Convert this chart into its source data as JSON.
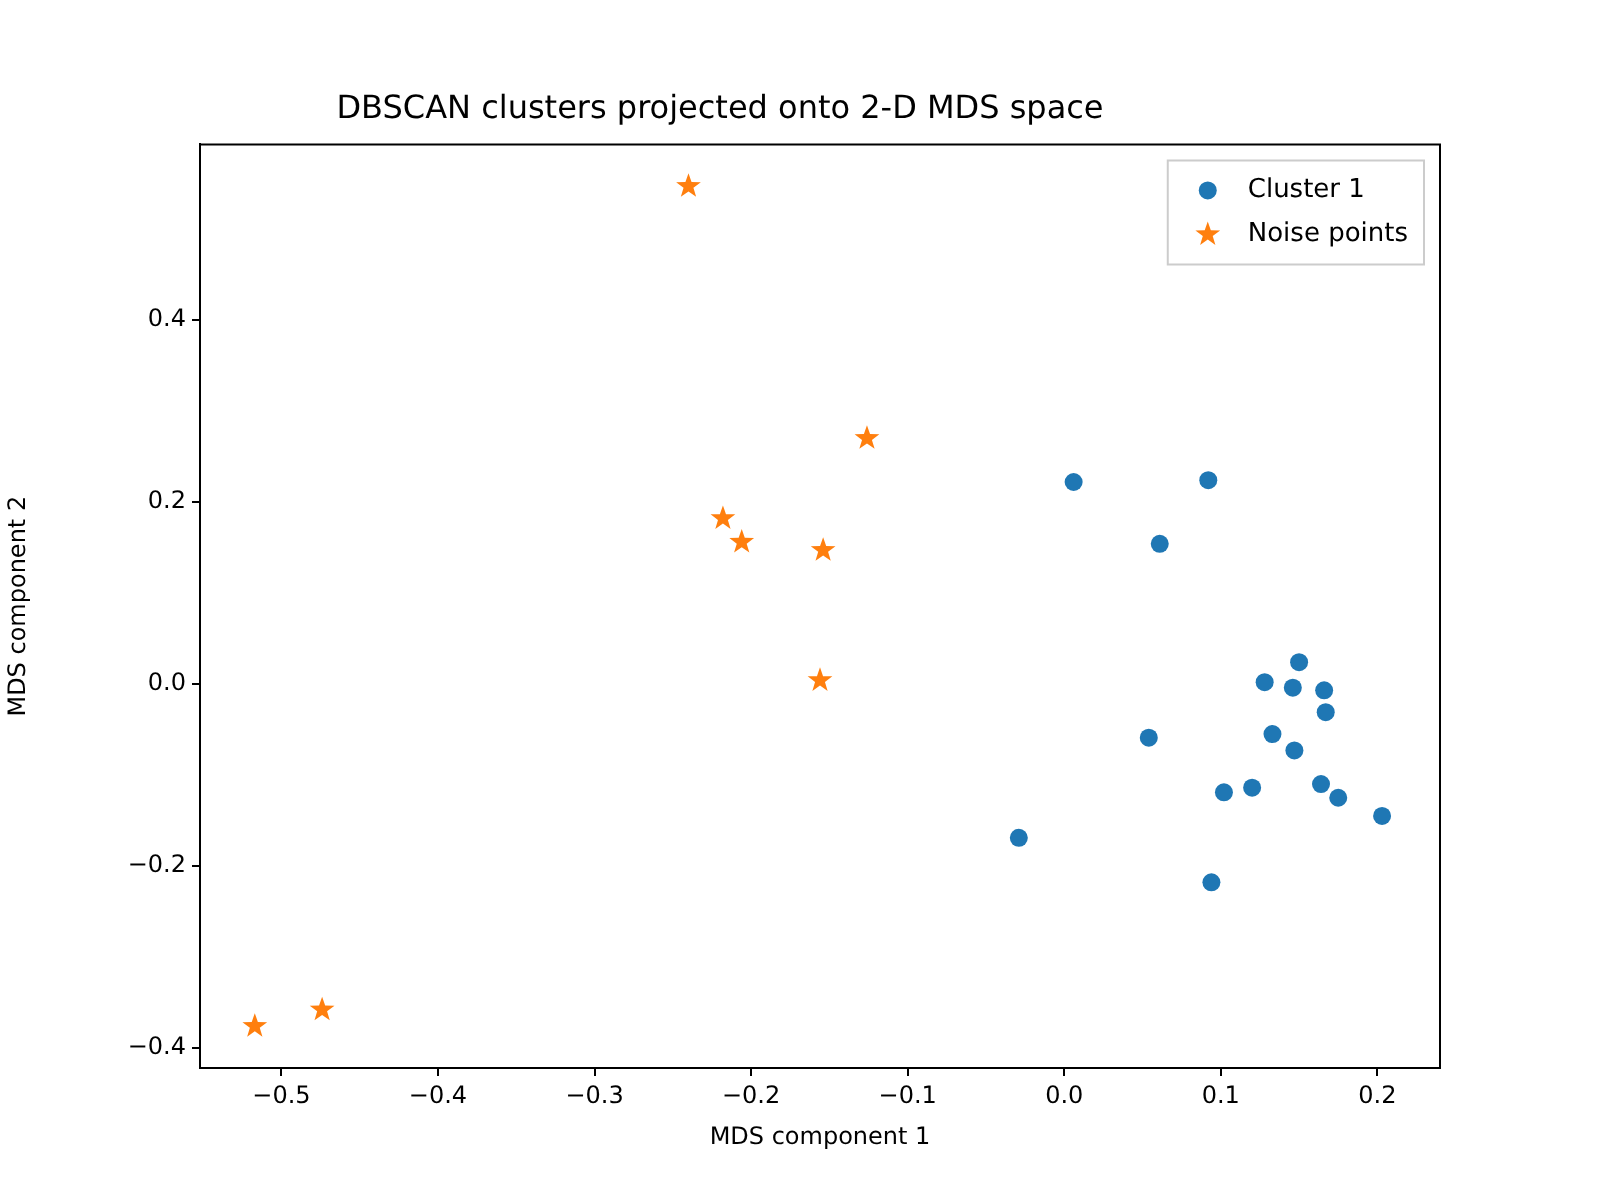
{
  "chart_data": {
    "type": "scatter",
    "title": "DBSCAN clusters projected onto 2-D MDS space",
    "xlabel": "MDS component 1",
    "ylabel": "MDS component 2",
    "xlim": [
      -0.552,
      0.24
    ],
    "ylim": [
      -0.422,
      0.593
    ],
    "xticks": [
      {
        "value": -0.5,
        "label": "−0.5"
      },
      {
        "value": -0.4,
        "label": "−0.4"
      },
      {
        "value": -0.3,
        "label": "−0.3"
      },
      {
        "value": -0.2,
        "label": "−0.2"
      },
      {
        "value": -0.1,
        "label": "−0.1"
      },
      {
        "value": 0,
        "label": "0.0"
      },
      {
        "value": 0.1,
        "label": "0.1"
      },
      {
        "value": 0.2,
        "label": "0.2"
      }
    ],
    "yticks": [
      {
        "value": -0.4,
        "label": "−0.4"
      },
      {
        "value": -0.2,
        "label": "−0.2"
      },
      {
        "value": 0,
        "label": "0.0"
      },
      {
        "value": 0.2,
        "label": "0.2"
      },
      {
        "value": 0.4,
        "label": "0.4"
      }
    ],
    "grid": false,
    "legend": "top right",
    "series": [
      {
        "name": "Cluster 1",
        "color": "#1f77b4",
        "marker": "circle",
        "x": [
          -0.029,
          0.006,
          0.061,
          0.092,
          0.054,
          0.094,
          0.102,
          0.12,
          0.128,
          0.133,
          0.146,
          0.15,
          0.147,
          0.166,
          0.167,
          0.164,
          0.175,
          0.203
        ],
        "values": [
          -0.169,
          0.222,
          0.154,
          0.224,
          -0.059,
          -0.218,
          -0.119,
          -0.114,
          0.002,
          -0.055,
          -0.004,
          0.024,
          -0.073,
          -0.007,
          -0.031,
          -0.11,
          -0.125,
          -0.145
        ]
      },
      {
        "name": "Noise points",
        "color": "#ff7f0e",
        "marker": "star",
        "x": [
          -0.24,
          -0.126,
          -0.218,
          -0.206,
          -0.154,
          -0.156,
          -0.474,
          -0.517
        ],
        "values": [
          0.547,
          0.27,
          0.182,
          0.156,
          0.147,
          0.004,
          -0.358,
          -0.376
        ]
      }
    ]
  }
}
